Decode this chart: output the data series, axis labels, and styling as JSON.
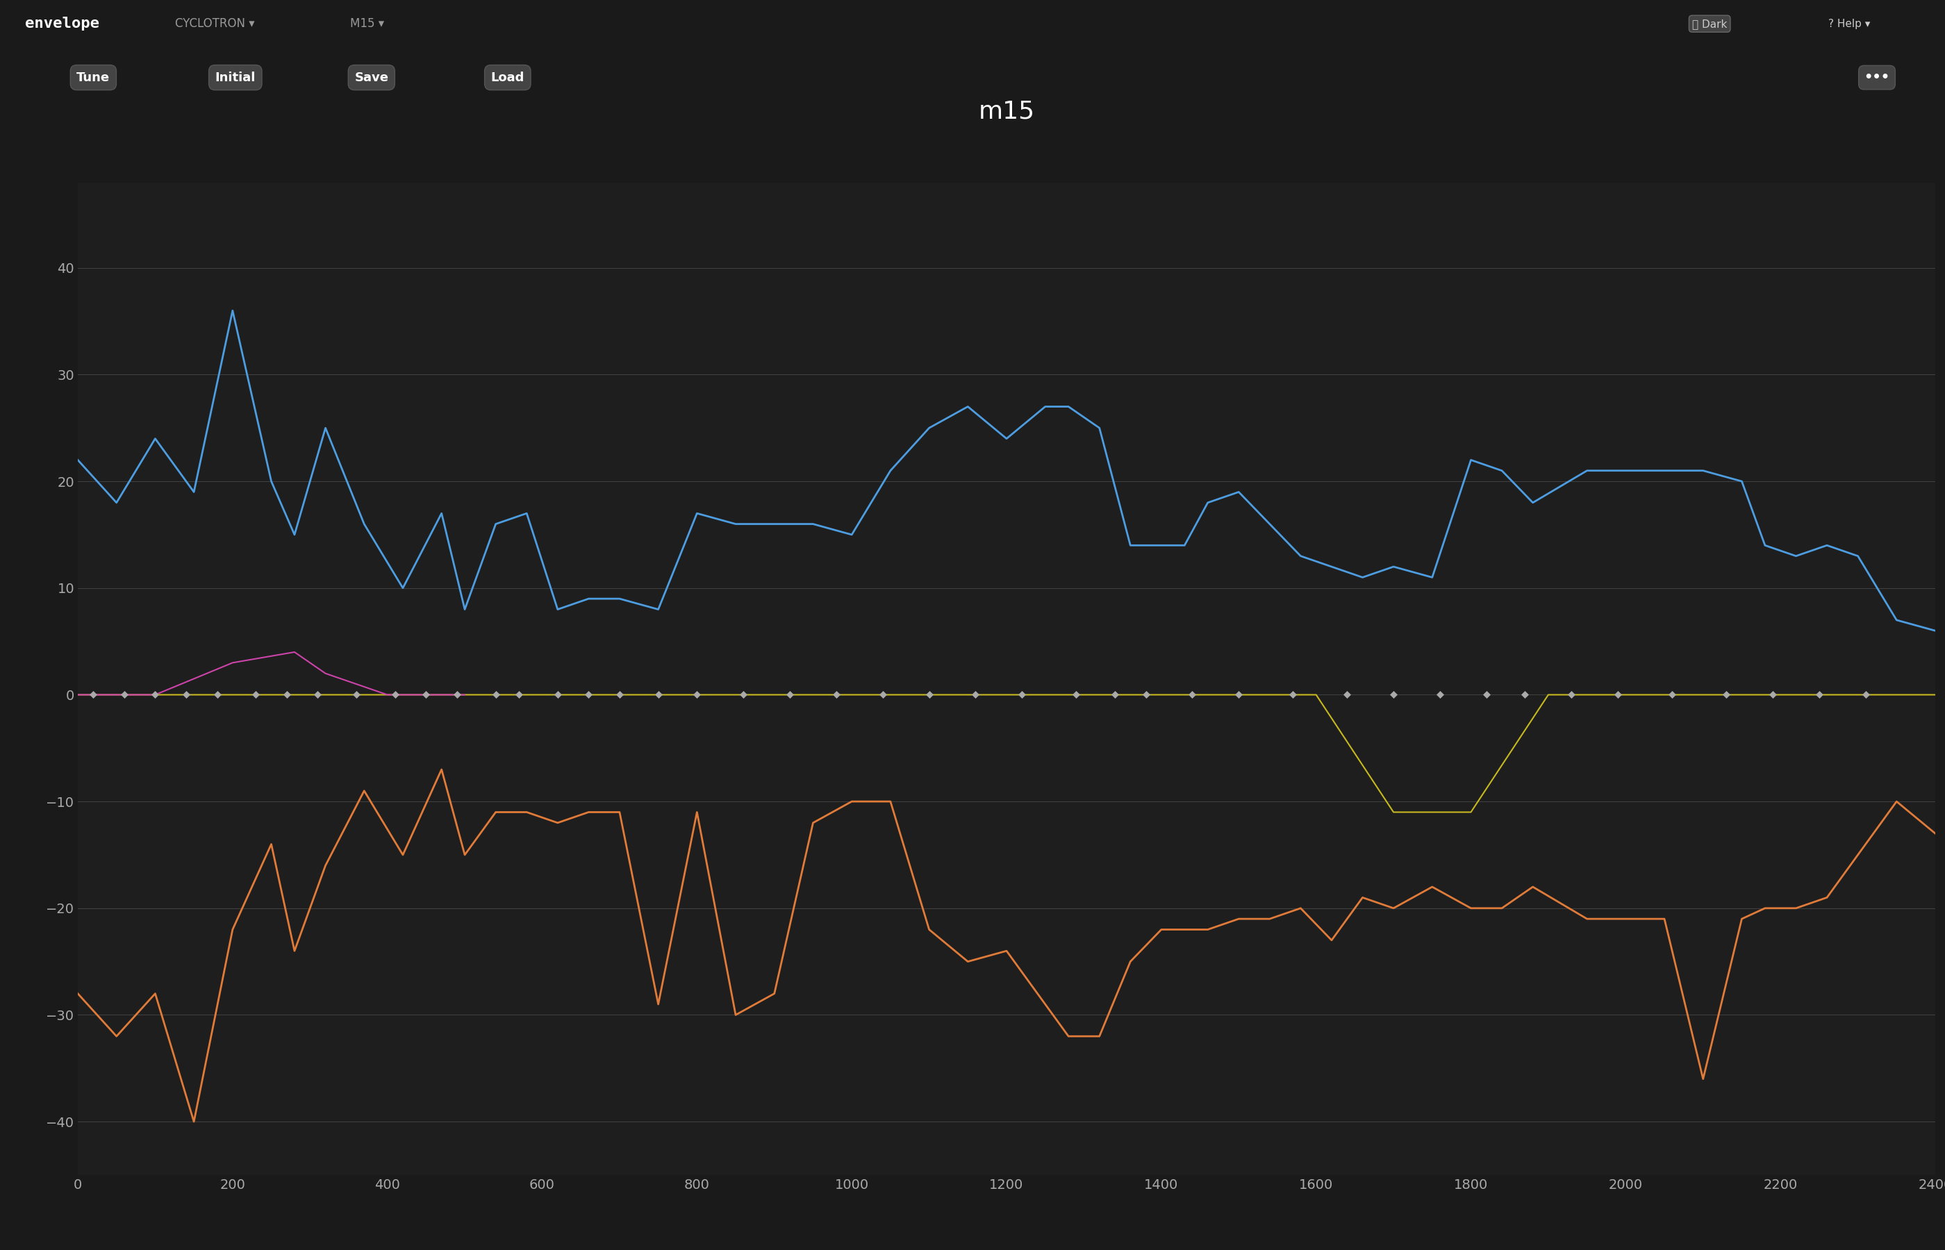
{
  "title": "m15",
  "bg_color": "#1a1a1a",
  "toolbar_color": "#3a6186",
  "nav_color": "#2d2d2d",
  "plot_bg": "#1e1e1e",
  "grid_color": "#404040",
  "tick_color": "#aaaaaa",
  "title_color": "#ffffff",
  "ylim": [
    -45,
    48
  ],
  "xlim": [
    0,
    2400
  ],
  "yticks": [
    40,
    30,
    20,
    10,
    0,
    -10,
    -20,
    -30,
    -40
  ],
  "xticks": [
    0,
    200,
    400,
    600,
    800,
    1000,
    1200,
    1400,
    1600,
    1800,
    2000,
    2200,
    2400
  ],
  "blue_color": "#4d9de0",
  "orange_color": "#e07b39",
  "yellow_color": "#c8b820",
  "magenta_color": "#cc44aa",
  "diamond_color": "#aaaaaa",
  "blue_x": [
    0,
    50,
    100,
    150,
    200,
    250,
    280,
    320,
    370,
    420,
    470,
    500,
    540,
    580,
    620,
    660,
    700,
    750,
    800,
    850,
    900,
    950,
    1000,
    1050,
    1100,
    1150,
    1200,
    1250,
    1280,
    1320,
    1360,
    1400,
    1430,
    1460,
    1500,
    1540,
    1580,
    1620,
    1660,
    1700,
    1750,
    1800,
    1840,
    1880,
    1950,
    2000,
    2050,
    2100,
    2150,
    2180,
    2220,
    2260,
    2300,
    2350,
    2400
  ],
  "blue_y": [
    22,
    18,
    24,
    19,
    36,
    20,
    15,
    25,
    16,
    10,
    17,
    8,
    16,
    17,
    8,
    9,
    9,
    8,
    17,
    16,
    16,
    16,
    15,
    21,
    25,
    27,
    24,
    27,
    27,
    25,
    14,
    14,
    14,
    18,
    19,
    16,
    13,
    12,
    11,
    12,
    11,
    22,
    21,
    18,
    21,
    21,
    21,
    21,
    20,
    14,
    13,
    14,
    13,
    7,
    6
  ],
  "orange_x": [
    0,
    50,
    100,
    150,
    200,
    250,
    280,
    320,
    370,
    420,
    470,
    500,
    540,
    580,
    620,
    660,
    700,
    750,
    800,
    850,
    900,
    950,
    1000,
    1050,
    1100,
    1150,
    1200,
    1250,
    1280,
    1320,
    1360,
    1400,
    1430,
    1460,
    1500,
    1540,
    1580,
    1620,
    1660,
    1700,
    1750,
    1800,
    1840,
    1880,
    1950,
    2000,
    2050,
    2100,
    2150,
    2180,
    2220,
    2260,
    2300,
    2350,
    2400
  ],
  "orange_y": [
    -28,
    -32,
    -28,
    -40,
    -22,
    -14,
    -24,
    -16,
    -9,
    -15,
    -7,
    -15,
    -11,
    -11,
    -12,
    -11,
    -11,
    -29,
    -11,
    -30,
    -28,
    -12,
    -10,
    -10,
    -22,
    -25,
    -24,
    -29,
    -32,
    -32,
    -25,
    -22,
    -22,
    -22,
    -21,
    -21,
    -20,
    -23,
    -19,
    -20,
    -18,
    -20,
    -20,
    -18,
    -21,
    -21,
    -21,
    -36,
    -21,
    -20,
    -20,
    -19,
    -15,
    -10,
    -13
  ],
  "yellow_x": [
    0,
    400,
    500,
    600,
    700,
    800,
    900,
    1000,
    1100,
    1200,
    1300,
    1400,
    1500,
    1600,
    1700,
    1800,
    1900,
    2000,
    2100,
    2200,
    2300,
    2400
  ],
  "yellow_y": [
    0,
    0,
    0,
    0,
    0,
    0,
    0,
    0,
    0,
    0,
    0,
    0,
    0,
    0,
    -11,
    -11,
    0,
    0,
    0,
    0,
    0,
    0
  ],
  "magenta_x": [
    0,
    100,
    200,
    280,
    320,
    400,
    500
  ],
  "magenta_y": [
    0,
    0,
    3,
    4,
    2,
    0,
    0
  ],
  "diamond_x": [
    20,
    60,
    100,
    140,
    180,
    230,
    270,
    310,
    360,
    410,
    450,
    490,
    540,
    570,
    620,
    660,
    700,
    750,
    800,
    860,
    920,
    980,
    1040,
    1100,
    1160,
    1220,
    1290,
    1340,
    1380,
    1440,
    1500,
    1570,
    1640,
    1700,
    1760,
    1820,
    1870,
    1930,
    1990,
    2060,
    2130,
    2190,
    2250,
    2310
  ],
  "button_labels": [
    "Tune",
    "Initial",
    "Save",
    "Load"
  ],
  "nav_labels": [
    "envelope",
    "CYCLOTRON",
    "M15"
  ],
  "extra_label": "...",
  "help_label": "? Help"
}
